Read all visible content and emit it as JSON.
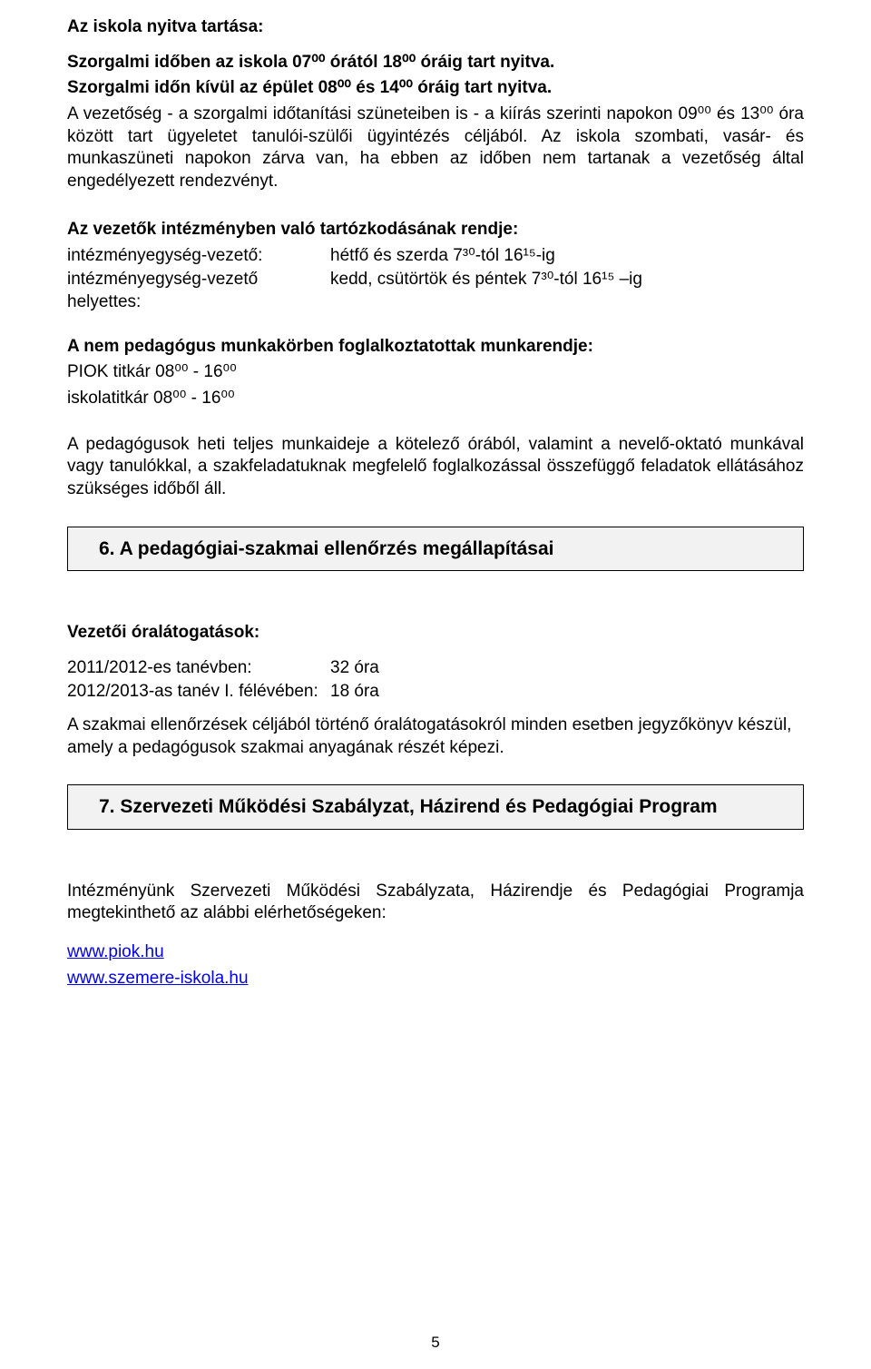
{
  "s1": {
    "heading": "Az iskola nyitva tartása:",
    "line1": "Szorgalmi időben az iskola 07⁰⁰ órától 18⁰⁰ óráig tart nyitva.",
    "line2": "Szorgalmi időn kívül az épület 08⁰⁰ és 14⁰⁰ óráig tart nyitva.",
    "p1": "A vezetőség - a szorgalmi időtanítási szüneteiben is - a kiírás szerinti napokon 09⁰⁰ és 13⁰⁰ óra között tart ügyeletet tanulói-szülői ügyintézés céljából. Az iskola szombati, vasár- és munkaszüneti napokon zárva van, ha ebben az időben nem tartanak a vezetőség által engedélyezett rendezvényt."
  },
  "s2": {
    "heading": "Az vezetők intézményben való tartózkodásának rendje:",
    "r1_lbl": "intézményegység-vezető:",
    "r1_val": "hétfő és szerda 7³⁰-tól 16¹⁵-ig",
    "r2_lbl": "intézményegység-vezető helyettes:",
    "r2_val": "kedd, csütörtök és péntek 7³⁰-tól 16¹⁵ –ig"
  },
  "s3": {
    "heading": "A nem pedagógus munkakörben foglalkoztatottak munkarendje:",
    "line1": "PIOK titkár 08⁰⁰ - 16⁰⁰",
    "line2": "iskolatitkár 08⁰⁰ - 16⁰⁰"
  },
  "s4": {
    "p": "A pedagógusok heti teljes munkaideje a kötelező órából, valamint a nevelő-oktató munkával vagy tanulókkal, a szakfeladatuknak megfelelő foglalkozással összefüggő feladatok ellátásához szükséges időből áll."
  },
  "box6": "6.  A pedagógiai-szakmai ellenőrzés megállapításai",
  "s5": {
    "heading": "Vezetői óralátogatások:",
    "r1_lbl": "2011/2012-es tanévben:",
    "r1_val": "32 óra",
    "r2_lbl": "2012/2013-as tanév I. félévében:",
    "r2_val": "18 óra",
    "p": "A szakmai ellenőrzések céljából történő óralátogatásokról minden esetben jegyzőkönyv készül, amely a pedagógusok szakmai anyagának részét képezi."
  },
  "box7": "7.  Szervezeti Működési Szabályzat, Házirend és Pedagógiai Program",
  "s6": {
    "p": "Intézményünk Szervezeti Működési Szabályzata, Házirendje és Pedagógiai Programja megtekinthető az alábbi elérhetőségeken:",
    "link1": "www.piok.hu",
    "link2": "www.szemere-iskola.hu"
  },
  "pageNumber": "5"
}
